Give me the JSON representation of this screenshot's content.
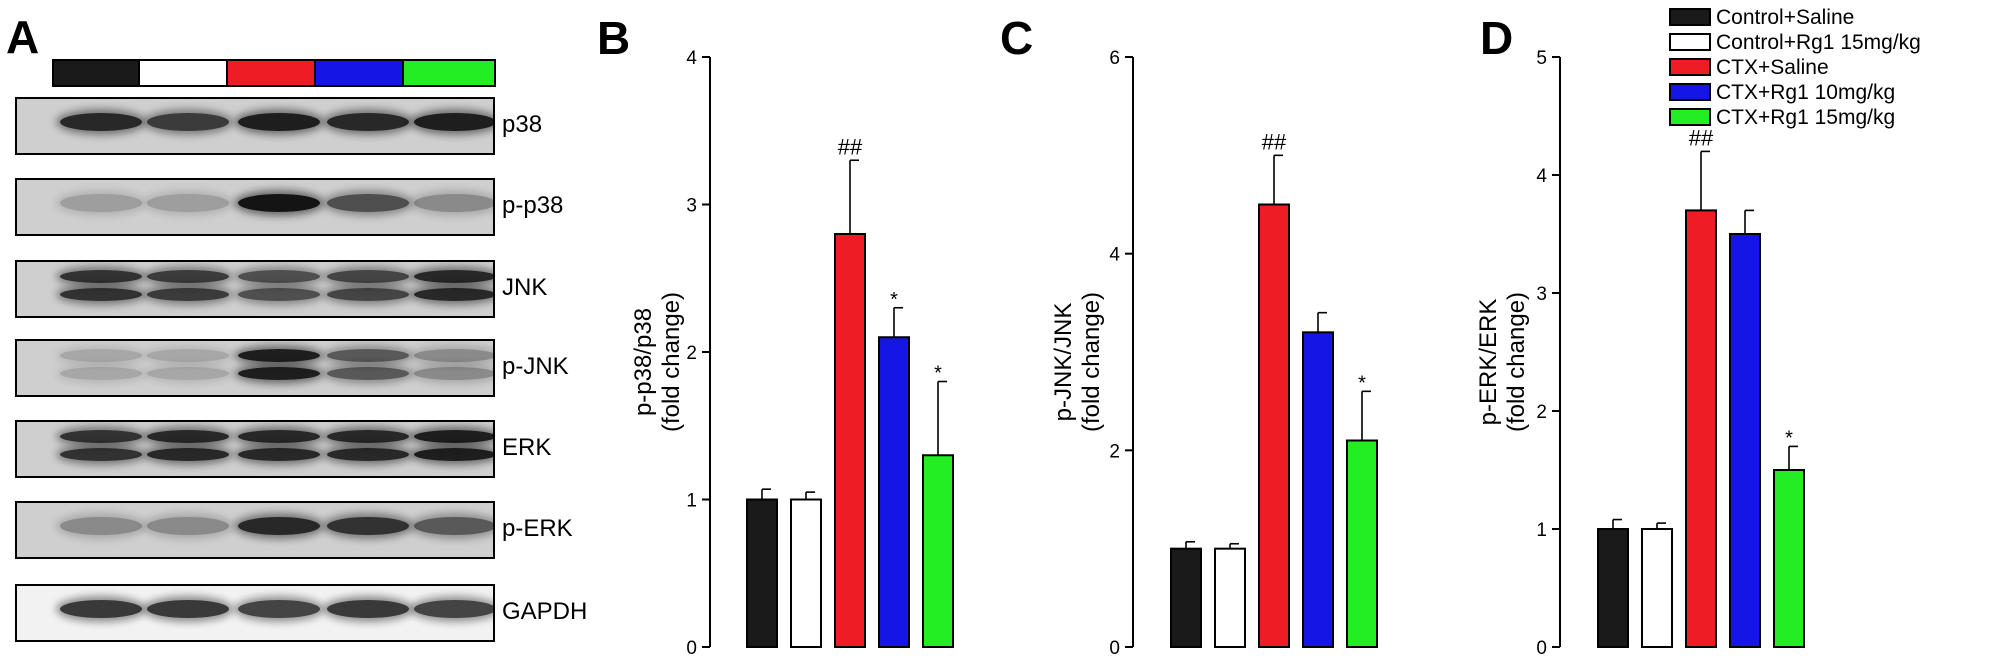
{
  "panels": {
    "A": "A",
    "B": "B",
    "C": "C",
    "D": "D"
  },
  "legend": [
    {
      "label": "Control+Saline",
      "color": "#1a1a1a"
    },
    {
      "label": "Control+Rg1 15mg/kg",
      "color": "#ffffff"
    },
    {
      "label": "CTX+Saline",
      "color": "#ee1c24"
    },
    {
      "label": "CTX+Rg1 10mg/kg",
      "color": "#1515e6"
    },
    {
      "label": "CTX+Rg1 15mg/kg",
      "color": "#22ee22"
    }
  ],
  "blots": [
    "p38",
    "p-p38",
    "JNK",
    "p-JNK",
    "ERK",
    "p-ERK",
    "GAPDH"
  ],
  "chart_data": [
    {
      "panel": "B",
      "type": "bar",
      "ylabel_line1": "p-p38/p38",
      "ylabel_line2": "(fold change)",
      "ylim": [
        0,
        4
      ],
      "yticks": [
        0,
        1,
        2,
        3,
        4
      ],
      "ytick_labels": [
        "0",
        "1",
        "2",
        "3",
        "4"
      ],
      "values": [
        1.0,
        1.0,
        2.8,
        2.1,
        1.3
      ],
      "errors": [
        0.07,
        0.05,
        0.5,
        0.2,
        0.5
      ],
      "annotations": [
        "",
        "",
        "##",
        "*",
        "*"
      ]
    },
    {
      "panel": "C",
      "type": "bar",
      "ylabel_line1": "p-JNK/JNK",
      "ylabel_line2": "(fold change)",
      "ylim": [
        0,
        6
      ],
      "yticks": [
        0,
        2,
        4,
        6
      ],
      "ytick_labels": [
        "0",
        "2",
        "4",
        "6"
      ],
      "values": [
        1.0,
        1.0,
        4.5,
        3.2,
        2.1
      ],
      "errors": [
        0.07,
        0.05,
        0.5,
        0.2,
        0.5
      ],
      "annotations": [
        "",
        "",
        "##",
        "",
        "*"
      ]
    },
    {
      "panel": "D",
      "type": "bar",
      "ylabel_line1": "p-ERK/ERK",
      "ylabel_line2": "(fold change)",
      "ylim": [
        0,
        5
      ],
      "yticks": [
        0,
        1,
        2,
        3,
        4,
        5
      ],
      "ytick_labels": [
        "0",
        "1",
        "2",
        "3",
        "4",
        "5"
      ],
      "values": [
        1.0,
        1.0,
        3.7,
        3.5,
        1.5
      ],
      "errors": [
        0.08,
        0.05,
        0.5,
        0.2,
        0.2
      ],
      "annotations": [
        "",
        "",
        "##",
        "",
        "*"
      ]
    }
  ]
}
